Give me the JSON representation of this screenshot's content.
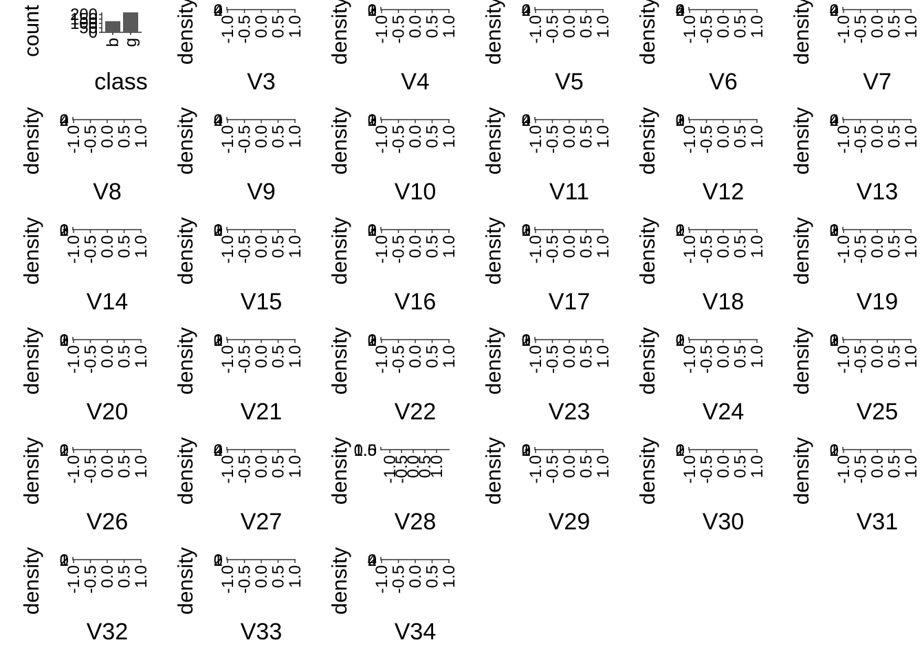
{
  "colors": {
    "background": "#ffffff",
    "axis": "#333333",
    "text": "#000000",
    "bar_fill": "#595959"
  },
  "chart_data": [
    {
      "type": "bar",
      "panel": "class",
      "categories": [
        "b",
        "g"
      ],
      "values": [
        126,
        225
      ],
      "ylabel": "count",
      "xlabel": "class",
      "y_ticks": [
        "0",
        "50",
        "100",
        "150",
        "200"
      ]
    },
    {
      "type": "area",
      "panel": "V3",
      "xlabel": "V3",
      "ylabel": "density",
      "y_ticks": [
        "0",
        "2",
        "4"
      ],
      "x_ticks": [
        "-1.0",
        "-0.5",
        "0.0",
        "0.5",
        "1.0"
      ],
      "xlim": [
        -1,
        1
      ]
    },
    {
      "type": "area",
      "panel": "V4",
      "xlabel": "V4",
      "ylabel": "density",
      "y_ticks": [
        "0",
        "1",
        "2",
        "3"
      ],
      "x_ticks": [
        "-1.0",
        "-0.5",
        "0.0",
        "0.5",
        "1.0"
      ],
      "xlim": [
        -1,
        1
      ]
    },
    {
      "type": "area",
      "panel": "V5",
      "xlabel": "V5",
      "ylabel": "density",
      "y_ticks": [
        "0",
        "2",
        "4"
      ],
      "x_ticks": [
        "-1.0",
        "-0.5",
        "0.0",
        "0.5",
        "1.0"
      ],
      "xlim": [
        -1,
        1
      ]
    },
    {
      "type": "area",
      "panel": "V6",
      "xlabel": "V6",
      "ylabel": "density",
      "y_ticks": [
        "0",
        "2",
        "4",
        "6"
      ],
      "x_ticks": [
        "-1.0",
        "-0.5",
        "0.0",
        "0.5",
        "1.0"
      ],
      "xlim": [
        -1,
        1
      ]
    },
    {
      "type": "area",
      "panel": "V7",
      "xlabel": "V7",
      "ylabel": "density",
      "y_ticks": [
        "0",
        "2",
        "4"
      ],
      "x_ticks": [
        "-1.0",
        "-0.5",
        "0.0",
        "0.5",
        "1.0"
      ],
      "xlim": [
        -1,
        1
      ]
    },
    {
      "type": "area",
      "panel": "V8",
      "xlabel": "V8",
      "ylabel": "density",
      "y_ticks": [
        "0",
        "2",
        "4"
      ],
      "x_ticks": [
        "-1.0",
        "-0.5",
        "0.0",
        "0.5",
        "1.0"
      ],
      "xlim": [
        -1,
        1
      ]
    },
    {
      "type": "area",
      "panel": "V9",
      "xlabel": "V9",
      "ylabel": "density",
      "y_ticks": [
        "0",
        "2",
        "4"
      ],
      "x_ticks": [
        "-1.0",
        "-0.5",
        "0.0",
        "0.5",
        "1.0"
      ],
      "xlim": [
        -1,
        1
      ]
    },
    {
      "type": "area",
      "panel": "V10",
      "xlabel": "V10",
      "ylabel": "density",
      "y_ticks": [
        "0",
        "1",
        "2",
        "3"
      ],
      "x_ticks": [
        "-1.0",
        "-0.5",
        "0.0",
        "0.5",
        "1.0"
      ],
      "xlim": [
        -1,
        1
      ]
    },
    {
      "type": "area",
      "panel": "V11",
      "xlabel": "V11",
      "ylabel": "density",
      "y_ticks": [
        "0",
        "2",
        "4"
      ],
      "x_ticks": [
        "-1.0",
        "-0.5",
        "0.0",
        "0.5",
        "1.0"
      ],
      "xlim": [
        -1,
        1
      ]
    },
    {
      "type": "area",
      "panel": "V12",
      "xlabel": "V12",
      "ylabel": "density",
      "y_ticks": [
        "0",
        "1",
        "2",
        "3"
      ],
      "x_ticks": [
        "-1.0",
        "-0.5",
        "0.0",
        "0.5",
        "1.0"
      ],
      "xlim": [
        -1,
        1
      ]
    },
    {
      "type": "area",
      "panel": "V13",
      "xlabel": "V13",
      "ylabel": "density",
      "y_ticks": [
        "0",
        "2",
        "4"
      ],
      "x_ticks": [
        "-1.0",
        "-0.5",
        "0.0",
        "0.5",
        "1.0"
      ],
      "xlim": [
        -1,
        1
      ]
    },
    {
      "type": "area",
      "panel": "V14",
      "xlabel": "V14",
      "ylabel": "density",
      "y_ticks": [
        "0",
        "1",
        "2",
        "3"
      ],
      "x_ticks": [
        "-1.0",
        "-0.5",
        "0.0",
        "0.5",
        "1.0"
      ],
      "xlim": [
        -1,
        1
      ]
    },
    {
      "type": "area",
      "panel": "V15",
      "xlabel": "V15",
      "ylabel": "density",
      "y_ticks": [
        "0",
        "1",
        "2",
        "3"
      ],
      "x_ticks": [
        "-1.0",
        "-0.5",
        "0.0",
        "0.5",
        "1.0"
      ],
      "xlim": [
        -1,
        1
      ]
    },
    {
      "type": "area",
      "panel": "V16",
      "xlabel": "V16",
      "ylabel": "density",
      "y_ticks": [
        "0",
        "1",
        "2",
        "3"
      ],
      "x_ticks": [
        "-1.0",
        "-0.5",
        "0.0",
        "0.5",
        "1.0"
      ],
      "xlim": [
        -1,
        1
      ]
    },
    {
      "type": "area",
      "panel": "V17",
      "xlabel": "V17",
      "ylabel": "density",
      "y_ticks": [
        "0",
        "1",
        "2",
        "3"
      ],
      "x_ticks": [
        "-1.0",
        "-0.5",
        "0.0",
        "0.5",
        "1.0"
      ],
      "xlim": [
        -1,
        1
      ]
    },
    {
      "type": "area",
      "panel": "V18",
      "xlabel": "V18",
      "ylabel": "density",
      "y_ticks": [
        "0",
        "1",
        "2"
      ],
      "x_ticks": [
        "-1.0",
        "-0.5",
        "0.0",
        "0.5",
        "1.0"
      ],
      "xlim": [
        -1,
        1
      ]
    },
    {
      "type": "area",
      "panel": "V19",
      "xlabel": "V19",
      "ylabel": "density",
      "y_ticks": [
        "0",
        "1",
        "2",
        "3"
      ],
      "x_ticks": [
        "-1.0",
        "-0.5",
        "0.0",
        "0.5",
        "1.0"
      ],
      "xlim": [
        -1,
        1
      ]
    },
    {
      "type": "area",
      "panel": "V20",
      "xlabel": "V20",
      "ylabel": "density",
      "y_ticks": [
        "0",
        "1",
        "2",
        "3"
      ],
      "x_ticks": [
        "-1.0",
        "-0.5",
        "0.0",
        "0.5",
        "1.0"
      ],
      "xlim": [
        -1,
        1
      ]
    },
    {
      "type": "area",
      "panel": "V21",
      "xlabel": "V21",
      "ylabel": "density",
      "y_ticks": [
        "0",
        "1",
        "2",
        "3"
      ],
      "x_ticks": [
        "-1.0",
        "-0.5",
        "0.0",
        "0.5",
        "1.0"
      ],
      "xlim": [
        -1,
        1
      ]
    },
    {
      "type": "area",
      "panel": "V22",
      "xlabel": "V22",
      "ylabel": "density",
      "y_ticks": [
        "0",
        "1",
        "2",
        "3"
      ],
      "x_ticks": [
        "-1.0",
        "-0.5",
        "0.0",
        "0.5",
        "1.0"
      ],
      "xlim": [
        -1,
        1
      ]
    },
    {
      "type": "area",
      "panel": "V23",
      "xlabel": "V23",
      "ylabel": "density",
      "y_ticks": [
        "0",
        "1",
        "2",
        "3"
      ],
      "x_ticks": [
        "-1.0",
        "-0.5",
        "0.0",
        "0.5",
        "1.0"
      ],
      "xlim": [
        -1,
        1
      ]
    },
    {
      "type": "area",
      "panel": "V24",
      "xlabel": "V24",
      "ylabel": "density",
      "y_ticks": [
        "0",
        "1",
        "2"
      ],
      "x_ticks": [
        "-1.0",
        "-0.5",
        "0.0",
        "0.5",
        "1.0"
      ],
      "xlim": [
        -1,
        1
      ]
    },
    {
      "type": "area",
      "panel": "V25",
      "xlabel": "V25",
      "ylabel": "density",
      "y_ticks": [
        "0",
        "1",
        "2",
        "3"
      ],
      "x_ticks": [
        "-1.0",
        "-0.5",
        "0.0",
        "0.5",
        "1.0"
      ],
      "xlim": [
        -1,
        1
      ]
    },
    {
      "type": "area",
      "panel": "V26",
      "xlabel": "V26",
      "ylabel": "density",
      "y_ticks": [
        "0",
        "1",
        "2"
      ],
      "x_ticks": [
        "-1.0",
        "-0.5",
        "0.0",
        "0.5",
        "1.0"
      ],
      "xlim": [
        -1,
        1
      ]
    },
    {
      "type": "area",
      "panel": "V27",
      "xlabel": "V27",
      "ylabel": "density",
      "y_ticks": [
        "0",
        "2",
        "4"
      ],
      "x_ticks": [
        "-1.0",
        "-0.5",
        "0.0",
        "0.5",
        "1.0"
      ],
      "xlim": [
        -1,
        1
      ]
    },
    {
      "type": "area",
      "panel": "V28",
      "xlabel": "V28",
      "ylabel": "density",
      "y_ticks": [
        "0.5",
        "1.0",
        "1.5"
      ],
      "x_ticks": [
        "-1.0",
        "-0.5",
        "0.0",
        "0.5",
        "1.0"
      ],
      "xlim": [
        -1,
        1
      ]
    },
    {
      "type": "area",
      "panel": "V29",
      "xlabel": "V29",
      "ylabel": "density",
      "y_ticks": [
        "0",
        "1",
        "2",
        "3"
      ],
      "x_ticks": [
        "-1.0",
        "-0.5",
        "0.0",
        "0.5",
        "1.0"
      ],
      "xlim": [
        -1,
        1
      ]
    },
    {
      "type": "area",
      "panel": "V30",
      "xlabel": "V30",
      "ylabel": "density",
      "y_ticks": [
        "0",
        "1",
        "2"
      ],
      "x_ticks": [
        "-1.0",
        "-0.5",
        "0.0",
        "0.5",
        "1.0"
      ],
      "xlim": [
        -1,
        1
      ]
    },
    {
      "type": "area",
      "panel": "V31",
      "xlabel": "V31",
      "ylabel": "density",
      "y_ticks": [
        "0",
        "1",
        "2"
      ],
      "x_ticks": [
        "-1.0",
        "-0.5",
        "0.0",
        "0.5",
        "1.0"
      ],
      "xlim": [
        -1,
        1
      ]
    },
    {
      "type": "area",
      "panel": "V32",
      "xlabel": "V32",
      "ylabel": "density",
      "y_ticks": [
        "0",
        "1",
        "2"
      ],
      "x_ticks": [
        "-1.0",
        "-0.5",
        "0.0",
        "0.5",
        "1.0"
      ],
      "xlim": [
        -1,
        1
      ]
    },
    {
      "type": "area",
      "panel": "V33",
      "xlabel": "V33",
      "ylabel": "density",
      "y_ticks": [
        "0",
        "1",
        "2"
      ],
      "x_ticks": [
        "-1.0",
        "-0.5",
        "0.0",
        "0.5",
        "1.0"
      ],
      "xlim": [
        -1,
        1
      ]
    },
    {
      "type": "area",
      "panel": "V34",
      "xlabel": "V34",
      "ylabel": "density",
      "y_ticks": [
        "0",
        "2",
        "4"
      ],
      "x_ticks": [
        "-1.0",
        "-0.5",
        "0.0",
        "0.5",
        "1.0"
      ],
      "xlim": [
        -1,
        1
      ]
    }
  ]
}
